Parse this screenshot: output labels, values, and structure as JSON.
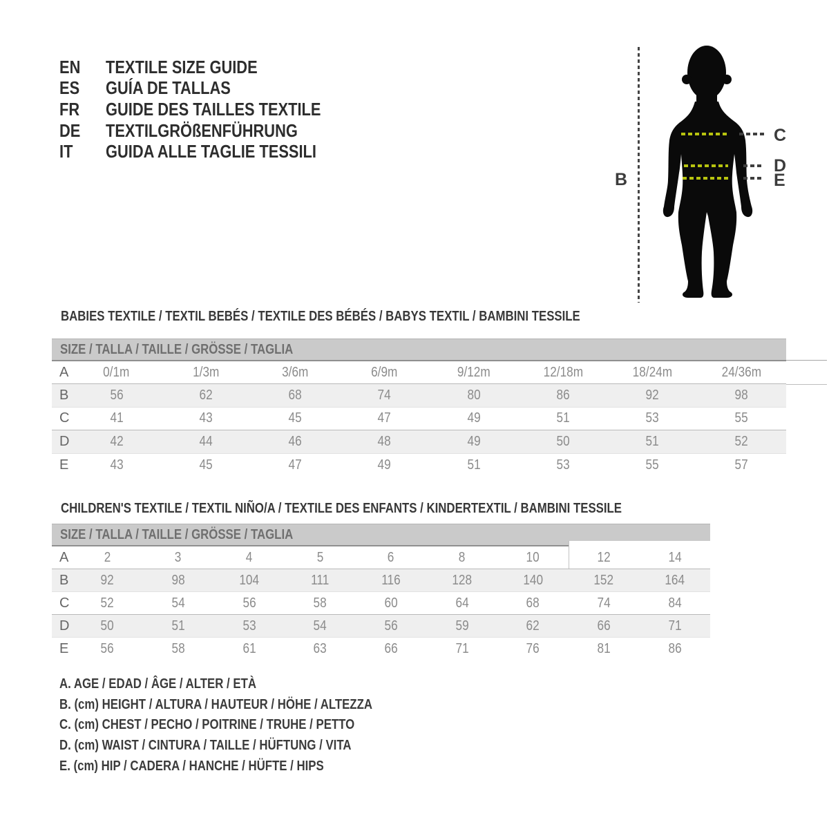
{
  "languages": [
    {
      "code": "EN",
      "title": "TEXTILE SIZE GUIDE"
    },
    {
      "code": "ES",
      "title": "GUÍA DE TALLAS"
    },
    {
      "code": "FR",
      "title": "GUIDE DES TAILLES TEXTILE"
    },
    {
      "code": "DE",
      "title": "TEXTILGRÖßENFÜHRUNG"
    },
    {
      "code": "IT",
      "title": "GUIDA ALLE TAGLIE TESSILI"
    }
  ],
  "figure": {
    "height_label": "B",
    "chest_label": "C",
    "waist_label": "D",
    "hip_label": "E",
    "accent_color": "#b7c30f",
    "silhouette_color": "#0a0a0a"
  },
  "tables": [
    {
      "heading": "BABIES TEXTILE / TEXTIL BEBÉS / TEXTILE DES BÉBÉS / BABYS TEXTIL / BAMBINI TESSILE",
      "size_header": "SIZE / TALLA / TAILLE / GRÖSSE / TAGLIA",
      "rows": [
        {
          "label": "A",
          "values": [
            "0/1m",
            "1/3m",
            "3/6m",
            "6/9m",
            "9/12m",
            "12/18m",
            "18/24m",
            "24/36m"
          ]
        },
        {
          "label": "B",
          "values": [
            "56",
            "62",
            "68",
            "74",
            "80",
            "86",
            "92",
            "98"
          ]
        },
        {
          "label": "C",
          "values": [
            "41",
            "43",
            "45",
            "47",
            "49",
            "51",
            "53",
            "55"
          ]
        },
        {
          "label": "D",
          "values": [
            "42",
            "44",
            "46",
            "48",
            "49",
            "50",
            "51",
            "52"
          ]
        },
        {
          "label": "E",
          "values": [
            "43",
            "45",
            "47",
            "49",
            "51",
            "53",
            "55",
            "57"
          ]
        }
      ],
      "edge_highlight": true
    },
    {
      "heading": "CHILDREN'S TEXTILE / TEXTIL NIÑO/A / TEXTILE DES ENFANTS / KINDERTEXTIL / BAMBINI TESSILE",
      "size_header": "SIZE / TALLA / TAILLE / GRÖSSE / TAGLIA",
      "rows": [
        {
          "label": "A",
          "values": [
            "2",
            "3",
            "4",
            "5",
            "6",
            "8",
            "10",
            "12",
            "14"
          ]
        },
        {
          "label": "B",
          "values": [
            "92",
            "98",
            "104",
            "111",
            "116",
            "128",
            "140",
            "152",
            "164"
          ]
        },
        {
          "label": "C",
          "values": [
            "52",
            "54",
            "56",
            "58",
            "60",
            "64",
            "68",
            "74",
            "84"
          ]
        },
        {
          "label": "D",
          "values": [
            "50",
            "51",
            "53",
            "54",
            "56",
            "59",
            "62",
            "66",
            "71"
          ]
        },
        {
          "label": "E",
          "values": [
            "56",
            "58",
            "61",
            "63",
            "66",
            "71",
            "76",
            "81",
            "86"
          ]
        }
      ],
      "highlight_start_col": 7
    }
  ],
  "legend": [
    "A. AGE / EDAD / ÂGE / ALTER / ETÀ",
    "B. (cm) HEIGHT / ALTURA / HAUTEUR / HÖHE / ALTEZZA",
    "C. (cm) CHEST / PECHO / POITRINE / TRUHE / PETTO",
    "D. (cm) WAIST / CINTURA / TAILLE / HÜFTUNG / VITA",
    "E. (cm) HIP / CADERA / HANCHE / HÜFTE / HIPS"
  ]
}
